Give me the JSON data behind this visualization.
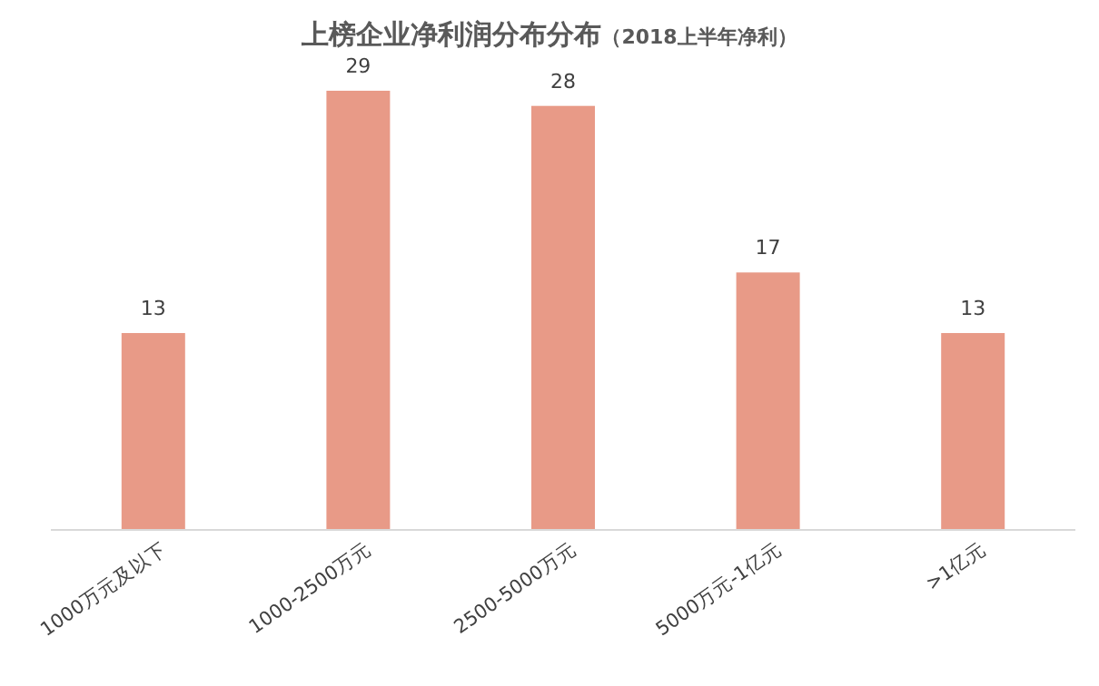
{
  "chart_data": {
    "type": "bar",
    "title": "上榜企业净利润分布分布",
    "subtitle": "（2018上半年净利）",
    "categories": [
      "1000万元及以下",
      "1000-2500万元",
      "2500-5000万元",
      "5000万元-1亿元",
      ">1亿元"
    ],
    "values": [
      13,
      29,
      28,
      17,
      13
    ],
    "color": "#e89a87",
    "data_labels": true
  }
}
